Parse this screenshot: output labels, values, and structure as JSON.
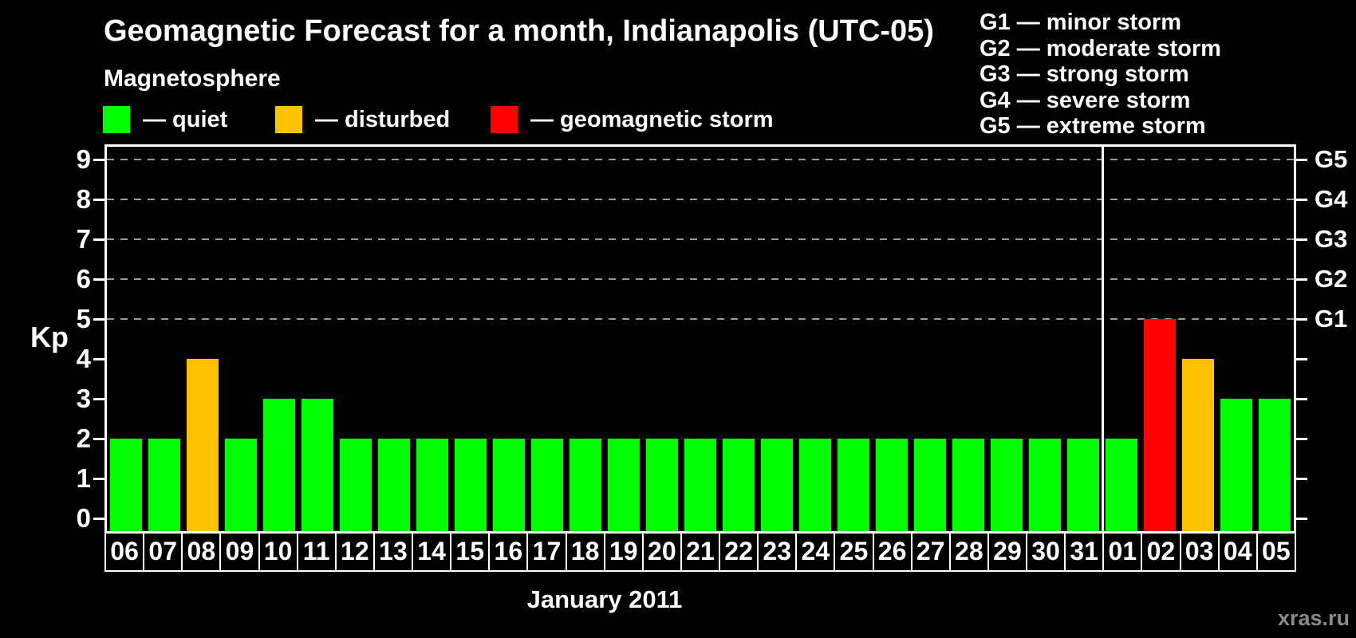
{
  "header": {
    "title": "Geomagnetic Forecast for a month, Indianapolis (UTC-05)"
  },
  "legend": {
    "heading": "Magnetosphere",
    "items": [
      {
        "state": "quiet",
        "label": "— quiet",
        "color": "#00ff00"
      },
      {
        "state": "disturbed",
        "label": "— disturbed",
        "color": "#ffc000"
      },
      {
        "state": "storm",
        "label": "— geomagnetic storm",
        "color": "#ff0000"
      }
    ]
  },
  "storm_scale_legend": {
    "lines": [
      "G1 — minor storm",
      "G2 — moderate storm",
      "G3 — strong storm",
      "G4 — severe storm",
      "G5 — extreme storm"
    ]
  },
  "watermark": "xras.ru",
  "chart_data": {
    "type": "bar",
    "title": "Geomagnetic Forecast for a month, Indianapolis (UTC-05)",
    "xlabel": "January 2011",
    "ylabel": "Kp",
    "ylim": [
      0,
      9
    ],
    "yticks": [
      0,
      1,
      2,
      3,
      4,
      5,
      6,
      7,
      8,
      9
    ],
    "grid": {
      "style": "dashed",
      "color": "#999999",
      "horizontal_at_kp": [
        5,
        6,
        7,
        8,
        9
      ]
    },
    "right_axis": {
      "labels": [
        "G1",
        "G2",
        "G3",
        "G4",
        "G5"
      ],
      "kp_levels": [
        5,
        6,
        7,
        8,
        9
      ]
    },
    "categories": [
      "06",
      "07",
      "08",
      "09",
      "10",
      "11",
      "12",
      "13",
      "14",
      "15",
      "16",
      "17",
      "18",
      "19",
      "20",
      "21",
      "22",
      "23",
      "24",
      "25",
      "26",
      "27",
      "28",
      "29",
      "30",
      "31",
      "01",
      "02",
      "03",
      "04",
      "05"
    ],
    "values": [
      2,
      2,
      4,
      2,
      3,
      3,
      2,
      2,
      2,
      2,
      2,
      2,
      2,
      2,
      2,
      2,
      2,
      2,
      2,
      2,
      2,
      2,
      2,
      2,
      2,
      2,
      2,
      5,
      4,
      3,
      3
    ],
    "states": [
      "quiet",
      "quiet",
      "disturbed",
      "quiet",
      "quiet",
      "quiet",
      "quiet",
      "quiet",
      "quiet",
      "quiet",
      "quiet",
      "quiet",
      "quiet",
      "quiet",
      "quiet",
      "quiet",
      "quiet",
      "quiet",
      "quiet",
      "quiet",
      "quiet",
      "quiet",
      "quiet",
      "quiet",
      "quiet",
      "quiet",
      "quiet",
      "storm",
      "disturbed",
      "quiet",
      "quiet"
    ],
    "colors": {
      "quiet": "#00ff00",
      "disturbed": "#ffc000",
      "storm": "#ff0000"
    },
    "month_separator_after_category": "31",
    "legend_position": "top-left",
    "background": "#000000"
  }
}
